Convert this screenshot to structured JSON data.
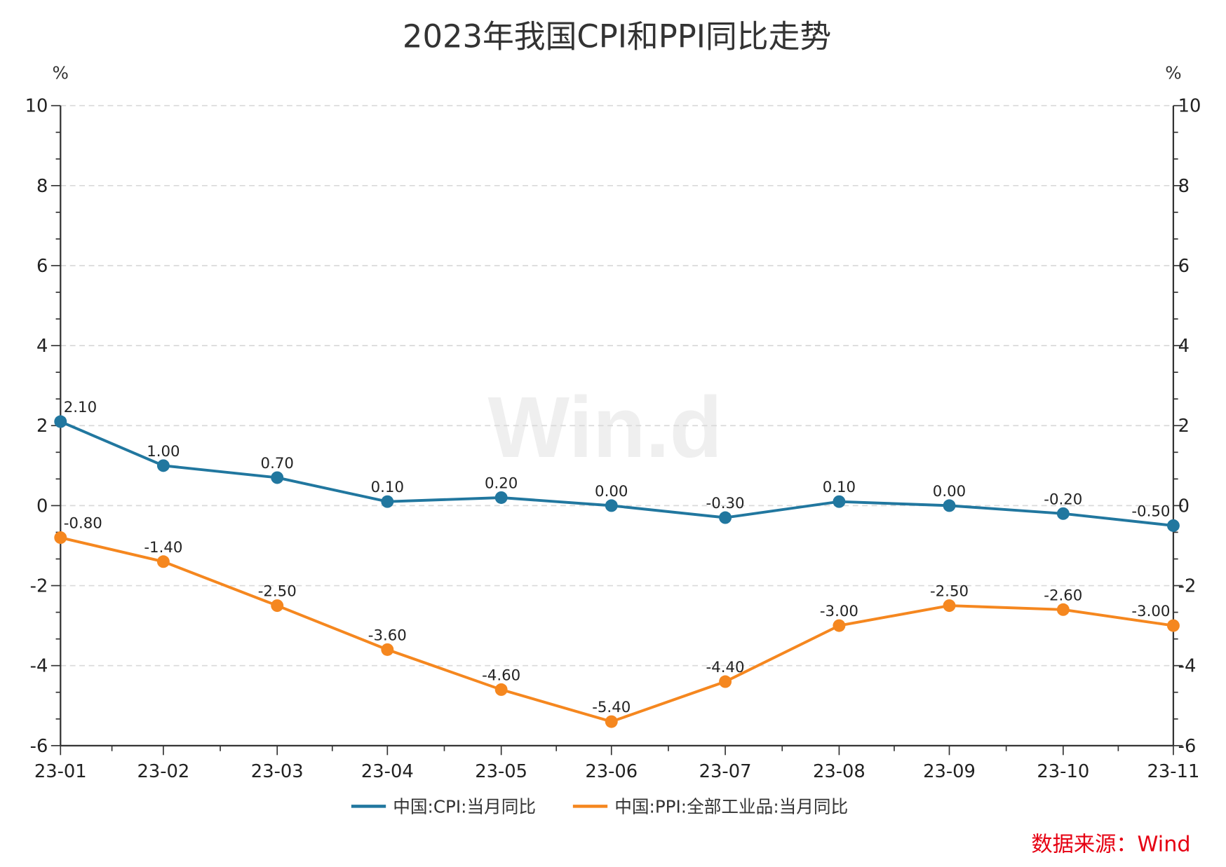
{
  "chart_data": {
    "type": "line",
    "title": "2023年我国CPI和PPI同比走势",
    "ylabel_left": "%",
    "ylabel_right": "%",
    "x": [
      "2023-01-31",
      "2023-02-28",
      "2023-03-31",
      "2023-04-30",
      "2023-05-31",
      "2023-06-30",
      "2023-07-31",
      "2023-08-31",
      "2023-09-30",
      "2023-10-31",
      "2023-11-30"
    ],
    "x_tick_labels": [
      "23-01",
      "23-02",
      "23-03",
      "23-04",
      "23-05",
      "23-06",
      "23-07",
      "23-08",
      "23-09",
      "23-10",
      "23-11"
    ],
    "ylim": [
      -6,
      10
    ],
    "y_ticks": [
      10,
      8,
      6,
      4,
      2,
      0,
      -2,
      -4,
      -6
    ],
    "y_tick_labels": [
      "10",
      "8",
      "6",
      "4",
      "2",
      "0",
      "-2",
      "-4",
      "-6"
    ],
    "grid": "horizontal dashed",
    "legend_position": "bottom",
    "series": [
      {
        "name": "中国:CPI:当月同比",
        "color": "#21779f",
        "values": [
          2.1,
          1.0,
          0.7,
          0.1,
          0.2,
          0.0,
          -0.3,
          0.1,
          0.0,
          -0.2,
          -0.5
        ],
        "labels": [
          "2.10",
          "1.00",
          "0.70",
          "0.10",
          "0.20",
          "0.00",
          "-0.30",
          "0.10",
          "0.00",
          "-0.20",
          "-0.50"
        ]
      },
      {
        "name": "中国:PPI:全部工业品:当月同比",
        "color": "#f5871f",
        "values": [
          -0.8,
          -1.4,
          -2.5,
          -3.6,
          -4.6,
          -5.4,
          -4.4,
          -3.0,
          -2.5,
          -2.6,
          -3.0
        ],
        "labels": [
          "-0.80",
          "-1.40",
          "-2.50",
          "-3.60",
          "-4.60",
          "-5.40",
          "-4.40",
          "-3.00",
          "-2.50",
          "-2.60",
          "-3.00"
        ]
      }
    ],
    "watermark": "Win.d",
    "source": "数据来源：Wind",
    "source_color": "#e60012"
  }
}
